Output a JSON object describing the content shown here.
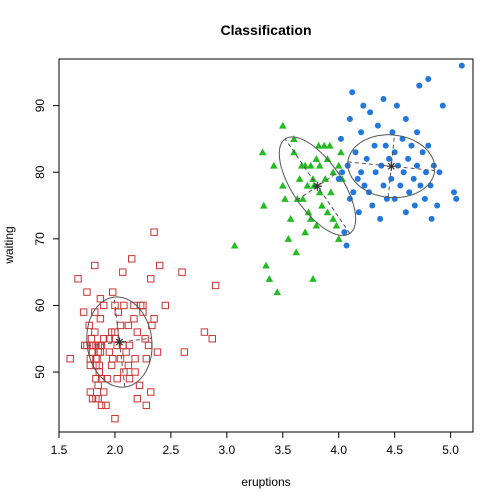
{
  "chart_data": {
    "type": "scatter",
    "title": "Classification",
    "xlabel": "eruptions",
    "ylabel": "waiting",
    "xlim": [
      1.5,
      5.2
    ],
    "ylim": [
      41,
      97
    ],
    "x_ticks": [
      1.5,
      2.0,
      2.5,
      3.0,
      3.5,
      4.0,
      4.5,
      5.0
    ],
    "x_tick_labels": [
      "1.5",
      "2.0",
      "2.5",
      "3.0",
      "3.5",
      "4.0",
      "4.5",
      "5.0"
    ],
    "y_ticks": [
      50,
      60,
      70,
      80,
      90
    ],
    "y_tick_labels": [
      "50",
      "60",
      "70",
      "80",
      "90"
    ],
    "grid": false,
    "colors": {
      "cluster1": "#CC3333",
      "cluster2": "#22BB22",
      "cluster3": "#2277DD",
      "ellipse": "#555555",
      "axis": "#000000"
    },
    "series": [
      {
        "marker": "open-square",
        "color": "#CC3333",
        "mean": [
          2.04,
          54.5
        ],
        "ellipse": {
          "rx": 0.29,
          "ry": 6.8,
          "angle": 0.12
        },
        "points": [
          [
            1.6,
            52
          ],
          [
            1.67,
            64
          ],
          [
            1.72,
            59
          ],
          [
            1.73,
            54
          ],
          [
            1.75,
            62
          ],
          [
            1.75,
            54
          ],
          [
            1.77,
            57
          ],
          [
            1.78,
            51
          ],
          [
            1.78,
            47
          ],
          [
            1.78,
            52
          ],
          [
            1.79,
            55
          ],
          [
            1.8,
            53
          ],
          [
            1.8,
            54
          ],
          [
            1.8,
            46
          ],
          [
            1.82,
            56
          ],
          [
            1.82,
            59
          ],
          [
            1.82,
            66
          ],
          [
            1.83,
            51
          ],
          [
            1.83,
            49
          ],
          [
            1.83,
            54
          ],
          [
            1.83,
            52
          ],
          [
            1.83,
            46
          ],
          [
            1.84,
            52
          ],
          [
            1.85,
            53
          ],
          [
            1.85,
            46
          ],
          [
            1.85,
            48
          ],
          [
            1.85,
            54
          ],
          [
            1.86,
            51
          ],
          [
            1.86,
            50
          ],
          [
            1.87,
            61
          ],
          [
            1.87,
            53
          ],
          [
            1.87,
            54
          ],
          [
            1.87,
            58
          ],
          [
            1.88,
            54
          ],
          [
            1.88,
            49
          ],
          [
            1.88,
            45
          ],
          [
            1.9,
            60
          ],
          [
            1.9,
            47
          ],
          [
            1.9,
            55
          ],
          [
            1.92,
            45
          ],
          [
            1.93,
            49
          ],
          [
            1.95,
            53
          ],
          [
            1.95,
            55
          ],
          [
            1.97,
            56
          ],
          [
            1.97,
            51
          ],
          [
            1.98,
            62
          ],
          [
            1.98,
            52
          ],
          [
            2.0,
            55
          ],
          [
            2.0,
            43
          ],
          [
            2.0,
            56
          ],
          [
            2.0,
            60
          ],
          [
            2.02,
            49
          ],
          [
            2.02,
            54
          ],
          [
            2.03,
            59
          ],
          [
            2.05,
            52
          ],
          [
            2.05,
            57
          ],
          [
            2.07,
            65
          ],
          [
            2.07,
            54
          ],
          [
            2.08,
            60
          ],
          [
            2.08,
            50
          ],
          [
            2.1,
            53
          ],
          [
            2.12,
            51
          ],
          [
            2.12,
            57
          ],
          [
            2.13,
            49
          ],
          [
            2.13,
            54
          ],
          [
            2.15,
            67
          ],
          [
            2.17,
            60
          ],
          [
            2.17,
            58
          ],
          [
            2.18,
            52
          ],
          [
            2.18,
            50
          ],
          [
            2.2,
            56
          ],
          [
            2.2,
            46
          ],
          [
            2.22,
            48
          ],
          [
            2.23,
            60
          ],
          [
            2.25,
            59
          ],
          [
            2.25,
            60
          ],
          [
            2.27,
            55
          ],
          [
            2.28,
            52
          ],
          [
            2.28,
            45
          ],
          [
            2.3,
            54
          ],
          [
            2.32,
            64
          ],
          [
            2.32,
            47
          ],
          [
            2.33,
            57
          ],
          [
            2.35,
            58
          ],
          [
            2.35,
            71
          ],
          [
            2.38,
            53
          ],
          [
            2.4,
            66
          ],
          [
            2.45,
            60
          ],
          [
            2.6,
            65
          ],
          [
            2.62,
            53
          ],
          [
            2.8,
            56
          ],
          [
            2.87,
            55
          ],
          [
            2.9,
            63
          ]
        ]
      },
      {
        "marker": "filled-triangle",
        "color": "#22BB22",
        "mean": [
          3.81,
          77.9
        ],
        "ellipse": {
          "rx": 0.22,
          "ry": 8.6,
          "angle": 0.6
        },
        "points": [
          [
            3.07,
            69
          ],
          [
            3.32,
            83
          ],
          [
            3.33,
            75
          ],
          [
            3.35,
            66
          ],
          [
            3.38,
            64
          ],
          [
            3.42,
            81
          ],
          [
            3.45,
            62
          ],
          [
            3.5,
            87
          ],
          [
            3.5,
            78
          ],
          [
            3.52,
            76
          ],
          [
            3.55,
            70
          ],
          [
            3.57,
            73
          ],
          [
            3.6,
            85
          ],
          [
            3.6,
            83
          ],
          [
            3.62,
            68
          ],
          [
            3.63,
            76
          ],
          [
            3.65,
            79
          ],
          [
            3.67,
            81
          ],
          [
            3.68,
            76
          ],
          [
            3.7,
            81
          ],
          [
            3.7,
            71
          ],
          [
            3.72,
            78
          ],
          [
            3.73,
            74
          ],
          [
            3.75,
            81
          ],
          [
            3.75,
            73
          ],
          [
            3.77,
            64
          ],
          [
            3.77,
            79
          ],
          [
            3.78,
            78
          ],
          [
            3.8,
            82
          ],
          [
            3.8,
            72
          ],
          [
            3.82,
            84
          ],
          [
            3.83,
            77
          ],
          [
            3.83,
            81
          ],
          [
            3.85,
            75
          ],
          [
            3.87,
            84
          ],
          [
            3.88,
            79
          ],
          [
            3.9,
            82
          ],
          [
            3.9,
            74
          ],
          [
            3.92,
            84
          ],
          [
            3.93,
            77
          ],
          [
            3.95,
            80
          ],
          [
            3.95,
            73
          ],
          [
            3.98,
            72
          ],
          [
            4.0,
            81
          ],
          [
            4.0,
            70
          ],
          [
            4.02,
            83
          ],
          [
            4.03,
            79
          ]
        ]
      },
      {
        "marker": "filled-circle",
        "color": "#2277DD",
        "mean": [
          4.47,
          80.9
        ],
        "ellipse": {
          "rx": 0.39,
          "ry": 4.7,
          "angle": -0.1
        },
        "points": [
          [
            4.0,
            79
          ],
          [
            4.02,
            85
          ],
          [
            4.03,
            80
          ],
          [
            4.05,
            71
          ],
          [
            4.07,
            69
          ],
          [
            4.08,
            81
          ],
          [
            4.1,
            76
          ],
          [
            4.1,
            88
          ],
          [
            4.12,
            92
          ],
          [
            4.13,
            77
          ],
          [
            4.15,
            83
          ],
          [
            4.17,
            79
          ],
          [
            4.18,
            74
          ],
          [
            4.2,
            86
          ],
          [
            4.2,
            80
          ],
          [
            4.22,
            90
          ],
          [
            4.23,
            78
          ],
          [
            4.25,
            82
          ],
          [
            4.27,
            77
          ],
          [
            4.28,
            89
          ],
          [
            4.3,
            75
          ],
          [
            4.32,
            84
          ],
          [
            4.33,
            80
          ],
          [
            4.35,
            87
          ],
          [
            4.37,
            73
          ],
          [
            4.38,
            81
          ],
          [
            4.4,
            78
          ],
          [
            4.4,
            91
          ],
          [
            4.42,
            84
          ],
          [
            4.43,
            76
          ],
          [
            4.45,
            82
          ],
          [
            4.47,
            79
          ],
          [
            4.48,
            86
          ],
          [
            4.5,
            83
          ],
          [
            4.5,
            76
          ],
          [
            4.52,
            90
          ],
          [
            4.53,
            81
          ],
          [
            4.55,
            78
          ],
          [
            4.57,
            85
          ],
          [
            4.58,
            80
          ],
          [
            4.6,
            74
          ],
          [
            4.6,
            88
          ],
          [
            4.62,
            82
          ],
          [
            4.63,
            77
          ],
          [
            4.65,
            84
          ],
          [
            4.67,
            79
          ],
          [
            4.68,
            75
          ],
          [
            4.7,
            86
          ],
          [
            4.7,
            81
          ],
          [
            4.72,
            93
          ],
          [
            4.73,
            78
          ],
          [
            4.75,
            83
          ],
          [
            4.77,
            76
          ],
          [
            4.78,
            80
          ],
          [
            4.8,
            94
          ],
          [
            4.8,
            84
          ],
          [
            4.82,
            78
          ],
          [
            4.83,
            73
          ],
          [
            4.85,
            81
          ],
          [
            4.88,
            75
          ],
          [
            4.9,
            80
          ],
          [
            4.93,
            90
          ],
          [
            5.03,
            77
          ],
          [
            5.05,
            76
          ],
          [
            5.1,
            96
          ]
        ]
      }
    ]
  }
}
